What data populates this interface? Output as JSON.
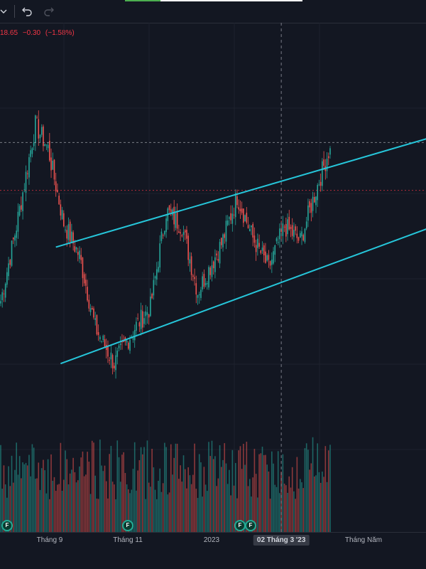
{
  "toolbar": {
    "icons": [
      "chevron-down-icon",
      "undo-icon",
      "redo-icon"
    ],
    "progress_fraction": 0.2
  },
  "legend": {
    "close": "18.65",
    "change": "−0.30",
    "change_pct": "(−1.58%)",
    "color": "#f23645"
  },
  "colors": {
    "background": "#131722",
    "up": "#26a69a",
    "down": "#ef5350",
    "trendline": "#26c6da",
    "grid": "#1e222d"
  },
  "chart_data": {
    "type": "candlestick",
    "x_tick_labels": [
      "Tháng 9",
      "Tháng 11",
      "2023",
      "Tháng Năm"
    ],
    "crosshair_x_label": "02 Tháng 3 '23",
    "ylim": [
      0,
      100
    ],
    "dividend_markers": [
      "F",
      "F",
      "F"
    ],
    "anchors": [
      {
        "i": 0,
        "y": 35
      },
      {
        "i": 10,
        "y": 60
      },
      {
        "i": 22,
        "y": 94
      },
      {
        "i": 30,
        "y": 86
      },
      {
        "i": 40,
        "y": 61
      },
      {
        "i": 50,
        "y": 50
      },
      {
        "i": 60,
        "y": 26
      },
      {
        "i": 72,
        "y": 14
      },
      {
        "i": 85,
        "y": 26
      },
      {
        "i": 95,
        "y": 33
      },
      {
        "i": 105,
        "y": 65
      },
      {
        "i": 115,
        "y": 60
      },
      {
        "i": 125,
        "y": 38
      },
      {
        "i": 140,
        "y": 54
      },
      {
        "i": 150,
        "y": 70
      },
      {
        "i": 160,
        "y": 56
      },
      {
        "i": 170,
        "y": 46
      },
      {
        "i": 180,
        "y": 60
      },
      {
        "i": 190,
        "y": 55
      },
      {
        "i": 200,
        "y": 72
      },
      {
        "i": 208,
        "y": 85
      }
    ],
    "volume_range": [
      0,
      100
    ],
    "trendlines": [
      {
        "from": {
          "i": 35,
          "y": 53
        },
        "to": {
          "i": 275,
          "y": 90
        }
      },
      {
        "from": {
          "i": 38,
          "y": 14
        },
        "to": {
          "i": 275,
          "y": 60
        }
      }
    ],
    "price_levels": [
      88,
      72
    ]
  }
}
